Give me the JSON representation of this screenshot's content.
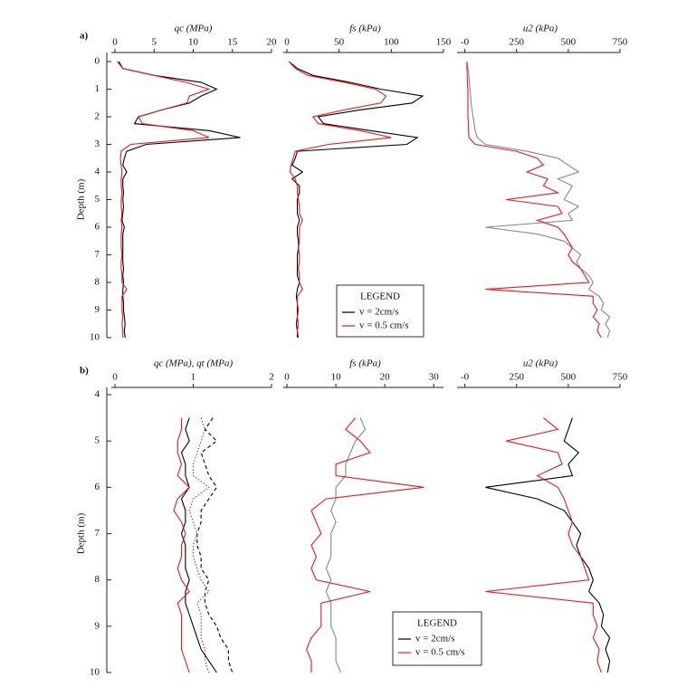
{
  "chart_data": [
    {
      "type": "line",
      "panel_label": "a)",
      "ylabel": "qc (MPa)",
      "xlabel": "Depth (m)",
      "x": [
        0,
        0.25,
        0.5,
        0.75,
        1,
        1.25,
        1.5,
        1.75,
        2,
        2.25,
        2.5,
        2.75,
        3,
        3.25,
        3.5,
        3.75,
        4,
        4.25,
        4.5,
        4.75,
        5,
        5.25,
        5.5,
        5.75,
        6,
        6.25,
        6.5,
        6.75,
        7,
        7.25,
        7.5,
        7.75,
        8,
        8.25,
        8.5,
        8.75,
        9,
        9.25,
        9.5,
        9.75,
        10
      ],
      "xlim": [
        0,
        10
      ],
      "xticks": [
        0,
        1,
        2,
        3,
        4,
        5,
        6,
        7,
        8,
        9,
        10
      ],
      "ylim": [
        0,
        20
      ],
      "yticks": [
        0,
        5,
        10,
        15,
        20
      ],
      "series": [
        {
          "color": "#000000",
          "values": [
            0.5,
            1,
            5,
            11,
            13,
            11,
            9.5,
            6,
            3,
            2.5,
            12,
            16,
            4,
            1.5,
            1.2,
            1,
            1.5,
            1,
            1,
            1.1,
            1,
            1.1,
            1,
            0.9,
            1.2,
            1,
            1,
            1,
            1,
            1,
            1.1,
            1,
            1.1,
            1,
            1,
            1.1,
            1.1,
            1.2,
            1.3,
            1.2,
            1.3
          ]
        },
        {
          "color": "#e8191c",
          "values": [
            0.3,
            1,
            5,
            9,
            12,
            9.5,
            9.2,
            6,
            3,
            3.5,
            10,
            12,
            2,
            0.8,
            0.7,
            0.8,
            0.9,
            0.8,
            0.8,
            0.9,
            0.8,
            0.8,
            0.9,
            0.8,
            0.9,
            0.8,
            0.8,
            0.8,
            0.9,
            0.8,
            0.8,
            0.9,
            0.9,
            1.5,
            0.9,
            0.9,
            0.9,
            1,
            0.9,
            1,
            1
          ]
        }
      ]
    },
    {
      "type": "line",
      "ylabel": "fs (kPa)",
      "x": [
        0,
        0.25,
        0.5,
        0.75,
        1,
        1.25,
        1.5,
        1.75,
        2,
        2.25,
        2.5,
        2.75,
        3,
        3.25,
        3.5,
        3.75,
        4,
        4.25,
        4.5,
        4.75,
        5,
        5.25,
        5.5,
        5.75,
        6,
        6.25,
        6.5,
        6.75,
        7,
        7.25,
        7.5,
        7.75,
        8,
        8.25,
        8.5,
        8.75,
        9,
        9.25,
        9.5,
        9.75,
        10
      ],
      "xlim": [
        0,
        10
      ],
      "ylim": [
        0,
        150
      ],
      "yticks": [
        0,
        50,
        100,
        150
      ],
      "legend": "LEGEND",
      "series": [
        {
          "name": "v = 2cm/s",
          "color": "#000000",
          "values": [
            2,
            10,
            25,
            60,
            90,
            130,
            120,
            70,
            30,
            35,
            80,
            125,
            115,
            10,
            8,
            5,
            15,
            5,
            12,
            12,
            10,
            10,
            10,
            12,
            10,
            10,
            11,
            11,
            10,
            10,
            10,
            10,
            12,
            10,
            9,
            10,
            10,
            10,
            9,
            10,
            10
          ]
        },
        {
          "name": "v = 0.5 cm/s",
          "color": "#e8191c",
          "values": [
            2,
            8,
            20,
            55,
            85,
            95,
            90,
            55,
            25,
            30,
            70,
            100,
            40,
            8,
            6,
            4,
            3,
            8,
            10,
            10,
            11,
            12,
            12,
            15,
            12,
            12,
            12,
            11,
            12,
            12,
            11,
            12,
            12,
            15,
            10,
            10,
            11,
            10,
            11,
            10,
            11
          ]
        }
      ]
    },
    {
      "type": "line",
      "ylabel": "u2 (kPa)",
      "x": [
        0,
        0.25,
        0.5,
        0.75,
        1,
        1.25,
        1.5,
        1.75,
        2,
        2.25,
        2.5,
        2.75,
        3,
        3.25,
        3.5,
        3.75,
        4,
        4.25,
        4.5,
        4.75,
        5,
        5.25,
        5.5,
        5.75,
        6,
        6.25,
        6.5,
        6.75,
        7,
        7.25,
        7.5,
        7.75,
        8,
        8.25,
        8.5,
        8.75,
        9,
        9.25,
        9.5,
        9.75,
        10
      ],
      "xlim": [
        0,
        10
      ],
      "ylim": [
        -20,
        750
      ],
      "yticks": [
        {
          "value": 0,
          "label": "-0"
        },
        250,
        500,
        750
      ],
      "series": [
        {
          "color": "#888888",
          "values": [
            10,
            15,
            20,
            22,
            25,
            28,
            30,
            35,
            40,
            45,
            50,
            60,
            100,
            300,
            450,
            500,
            550,
            450,
            520,
            500,
            480,
            550,
            500,
            520,
            100,
            350,
            480,
            520,
            560,
            540,
            560,
            600,
            620,
            600,
            650,
            670,
            660,
            700,
            680,
            700,
            690
          ]
        },
        {
          "color": "#e8191c",
          "values": [
            10,
            10,
            12,
            12,
            15,
            15,
            15,
            15,
            15,
            18,
            18,
            20,
            50,
            250,
            350,
            380,
            300,
            400,
            380,
            450,
            200,
            450,
            470,
            350,
            450,
            480,
            500,
            520,
            500,
            520,
            560,
            580,
            600,
            100,
            620,
            620,
            640,
            620,
            650,
            640,
            660
          ]
        }
      ]
    },
    {
      "type": "line",
      "panel_label": "b)",
      "ylabel": "qc (MPa),  qt (MPa)",
      "xlabel": "Depth (m)",
      "x": [
        4.5,
        4.75,
        5,
        5.25,
        5.5,
        5.75,
        6,
        6.25,
        6.5,
        6.75,
        7,
        7.25,
        7.5,
        7.75,
        8,
        8.25,
        8.5,
        8.75,
        9,
        9.25,
        9.5,
        9.75,
        10
      ],
      "xlim": [
        4,
        10
      ],
      "xticks": [
        4,
        5,
        6,
        7,
        8,
        9,
        10
      ],
      "ylim": [
        0,
        2
      ],
      "yticks": [
        0,
        1,
        2
      ],
      "series": [
        {
          "color": "#000000",
          "values": [
            0.95,
            0.9,
            0.95,
            0.85,
            0.9,
            0.9,
            0.95,
            0.85,
            0.9,
            0.9,
            0.85,
            0.9,
            0.9,
            0.9,
            0.95,
            0.9,
            0.9,
            0.95,
            1,
            1.05,
            1.1,
            1.2,
            1.3
          ]
        },
        {
          "color": "#e8191c",
          "values": [
            0.85,
            0.85,
            0.8,
            0.8,
            0.85,
            0.8,
            0.95,
            0.8,
            0.75,
            0.85,
            0.9,
            0.85,
            0.85,
            0.8,
            0.85,
            0.95,
            0.8,
            0.85,
            0.85,
            0.85,
            0.85,
            0.9,
            0.95
          ]
        },
        {
          "color": "#000000",
          "dash": "dashed",
          "values": [
            1.25,
            1.15,
            1.3,
            1.1,
            1.15,
            1.2,
            1.3,
            1.2,
            1.1,
            1.1,
            1.05,
            1.05,
            1.1,
            1.1,
            1.2,
            1.15,
            1.15,
            1.2,
            1.3,
            1.35,
            1.45,
            1.45,
            1.5
          ]
        },
        {
          "color": "#e8191c",
          "dash": "dotted",
          "values": [
            1.1,
            1.15,
            1.1,
            1.05,
            1,
            1,
            1.2,
            1,
            0.95,
            1,
            1.05,
            1,
            1,
            1.05,
            1.1,
            1.2,
            1.05,
            1.1,
            1.1,
            1.1,
            1.15,
            1.15,
            1.2
          ]
        }
      ]
    },
    {
      "type": "line",
      "ylabel": "fs (kPa)",
      "x": [
        4.5,
        4.75,
        5,
        5.25,
        5.5,
        5.75,
        6,
        6.25,
        6.5,
        6.75,
        7,
        7.25,
        7.5,
        7.75,
        8,
        8.25,
        8.5,
        8.75,
        9,
        9.25,
        9.5,
        9.75,
        10
      ],
      "xlim": [
        4,
        10
      ],
      "ylim": [
        0,
        32
      ],
      "yticks": [
        0,
        10,
        20,
        30
      ],
      "series": [
        {
          "color": "#888888",
          "values": [
            15,
            16,
            14,
            13,
            12,
            12,
            10,
            10,
            9,
            10,
            9,
            9,
            9,
            8,
            9,
            8,
            9,
            9,
            9,
            10,
            10,
            10,
            11
          ]
        },
        {
          "color": "#e8191c",
          "values": [
            14,
            12,
            15,
            17,
            10,
            10,
            28,
            8,
            5,
            6,
            7,
            5,
            6,
            5,
            6,
            17,
            7,
            7,
            7,
            5,
            4,
            5,
            5
          ]
        }
      ]
    },
    {
      "type": "line",
      "ylabel": "u2 (kPa)",
      "x": [
        4.5,
        4.75,
        5,
        5.25,
        5.5,
        5.75,
        6,
        6.25,
        6.5,
        6.75,
        7,
        7.25,
        7.5,
        7.75,
        8,
        8.25,
        8.5,
        8.75,
        9,
        9.25,
        9.5,
        9.75,
        10
      ],
      "xlim": [
        4,
        10
      ],
      "ylim": [
        -20,
        750
      ],
      "yticks": [
        {
          "value": 0,
          "label": "-0"
        },
        250,
        500,
        750
      ],
      "legend": "LEGEND",
      "series": [
        {
          "name": "v = 2cm/s",
          "color": "#000000",
          "values": [
            520,
            500,
            480,
            550,
            500,
            520,
            100,
            350,
            480,
            520,
            560,
            540,
            560,
            600,
            620,
            600,
            650,
            670,
            660,
            700,
            680,
            700,
            690
          ]
        },
        {
          "name": "v = 0.5 cm/s",
          "color": "#e8191c",
          "values": [
            380,
            450,
            200,
            450,
            470,
            350,
            450,
            480,
            500,
            520,
            500,
            520,
            560,
            580,
            600,
            100,
            620,
            620,
            640,
            620,
            650,
            640,
            660
          ]
        }
      ]
    }
  ]
}
